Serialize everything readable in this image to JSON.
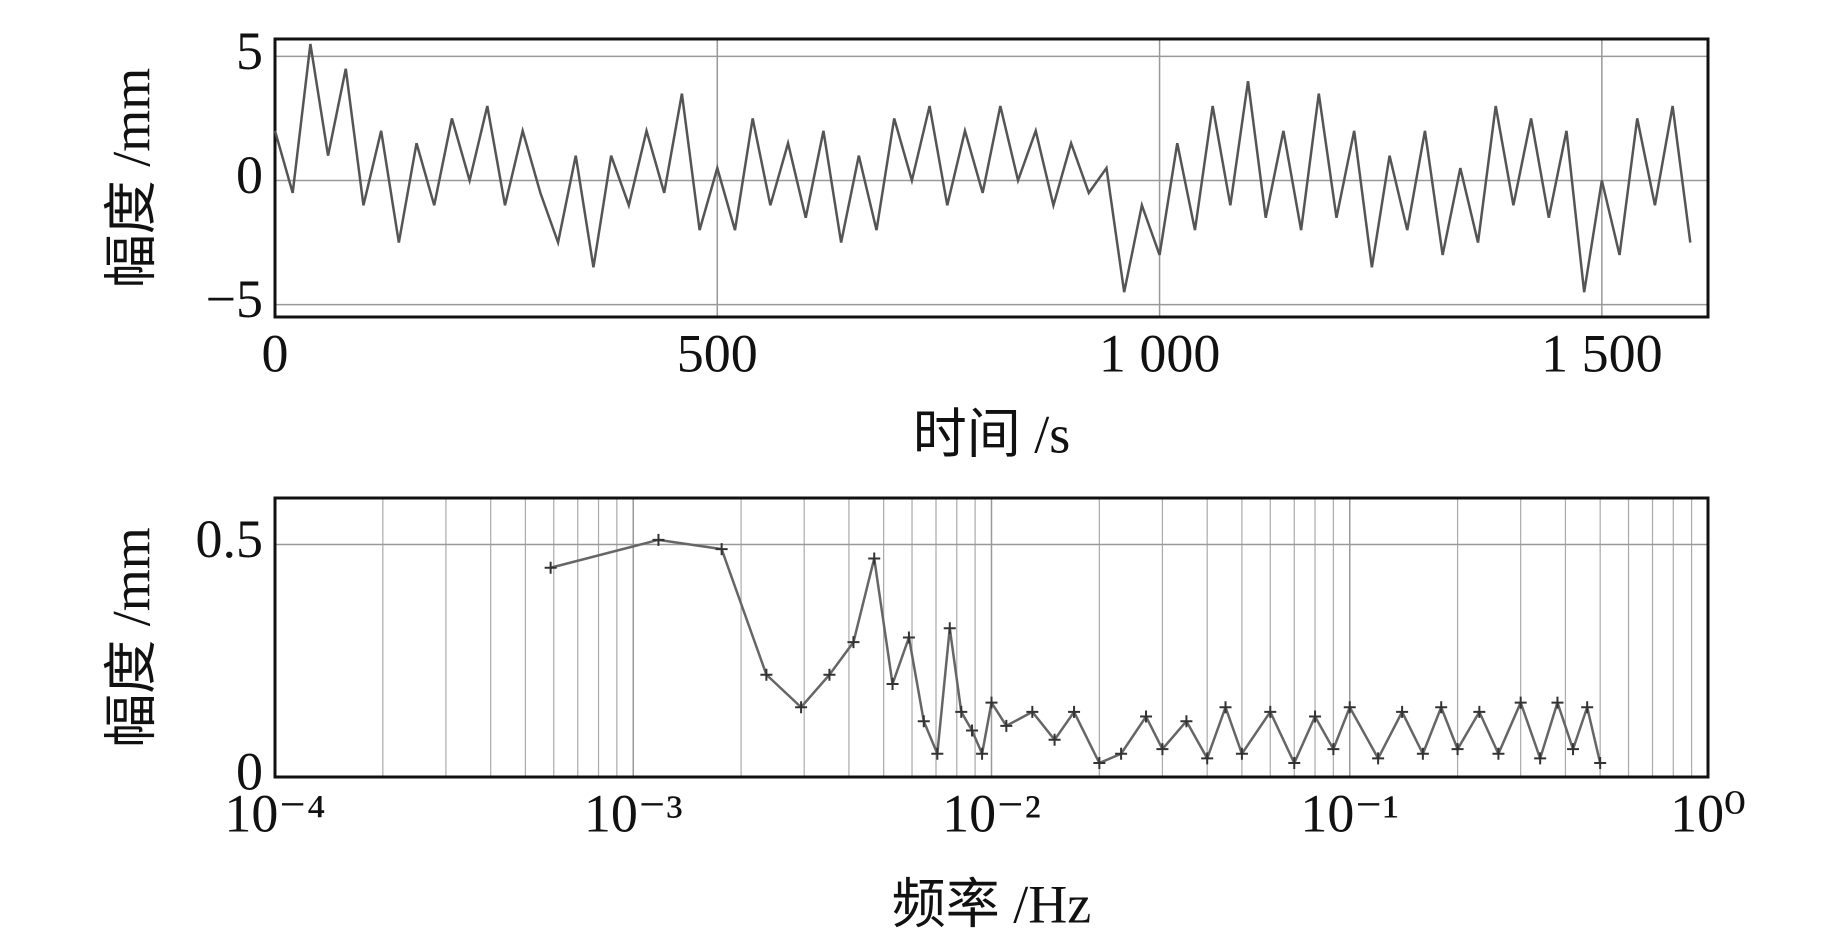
{
  "chart_data": [
    {
      "type": "line",
      "xlabel": "时间 /s",
      "ylabel": "幅度 /mm",
      "x": [
        0,
        20,
        40,
        60,
        80,
        100,
        120,
        140,
        160,
        180,
        200,
        220,
        240,
        260,
        280,
        300,
        320,
        340,
        360,
        380,
        400,
        420,
        440,
        460,
        480,
        500,
        520,
        540,
        560,
        580,
        600,
        620,
        640,
        660,
        680,
        700,
        720,
        740,
        760,
        780,
        800,
        820,
        840,
        860,
        880,
        900,
        920,
        940,
        960,
        980,
        1000,
        1020,
        1040,
        1060,
        1080,
        1100,
        1120,
        1140,
        1160,
        1180,
        1200,
        1220,
        1240,
        1260,
        1280,
        1300,
        1320,
        1340,
        1360,
        1380,
        1400,
        1420,
        1440,
        1460,
        1480,
        1500,
        1520,
        1540,
        1560,
        1580,
        1600
      ],
      "series": [
        {
          "color": "#555555",
          "values": [
            2,
            -0.5,
            5.5,
            1,
            4.5,
            -1,
            2,
            -2.5,
            1.5,
            -1,
            2.5,
            0,
            3,
            -1,
            2,
            -0.5,
            -2.5,
            1,
            -3.5,
            1,
            -1,
            2,
            -0.5,
            3.5,
            -2,
            0.5,
            -2,
            2.5,
            -1,
            1.5,
            -1.5,
            2,
            -2.5,
            1,
            -2,
            2.5,
            0,
            3,
            -1,
            2,
            -0.5,
            3,
            0,
            2,
            -1,
            1.5,
            -0.5,
            0.5,
            -4.5,
            -1,
            -3,
            1.5,
            -2,
            3,
            -1,
            4,
            -1.5,
            2,
            -2,
            3.5,
            -1.5,
            2,
            -3.5,
            1,
            -2,
            2,
            -3,
            0.5,
            -2.5,
            3,
            -1,
            2.5,
            -1.5,
            2,
            -4.5,
            0,
            -3,
            2.5,
            -1,
            3,
            -2.5
          ]
        }
      ],
      "xlim": [
        0,
        1620
      ],
      "ylim": [
        -5.5,
        5.7
      ],
      "xticks": [
        0,
        500,
        {
          "value": 1000,
          "label": "1 000"
        },
        {
          "value": 1500,
          "label": "1 500"
        }
      ],
      "yticks": [
        {
          "value": -5,
          "label": "−5"
        },
        0,
        5
      ],
      "grid": true
    },
    {
      "type": "line",
      "xlabel": "频率 /Hz",
      "ylabel": "幅度 /mm",
      "xscale": "log",
      "marker": "+",
      "x": [
        0.000588,
        0.001176,
        0.001765,
        0.002353,
        0.002941,
        0.003529,
        0.004118,
        0.004706,
        0.005294,
        0.005882,
        0.006471,
        0.007059,
        0.007647,
        0.008235,
        0.008824,
        0.009412,
        0.01,
        0.011,
        0.013,
        0.015,
        0.017,
        0.02,
        0.023,
        0.027,
        0.03,
        0.035,
        0.04,
        0.045,
        0.05,
        0.06,
        0.07,
        0.08,
        0.09,
        0.1,
        0.12,
        0.14,
        0.16,
        0.18,
        0.2,
        0.23,
        0.26,
        0.3,
        0.34,
        0.38,
        0.42,
        0.46,
        0.5
      ],
      "series": [
        {
          "color": "#666666",
          "values": [
            0.45,
            0.51,
            0.49,
            0.22,
            0.15,
            0.22,
            0.29,
            0.47,
            0.2,
            0.3,
            0.12,
            0.05,
            0.32,
            0.14,
            0.1,
            0.05,
            0.16,
            0.11,
            0.14,
            0.08,
            0.14,
            0.03,
            0.05,
            0.13,
            0.06,
            0.12,
            0.04,
            0.15,
            0.05,
            0.14,
            0.03,
            0.13,
            0.06,
            0.15,
            0.04,
            0.14,
            0.05,
            0.15,
            0.06,
            0.14,
            0.05,
            0.16,
            0.04,
            0.16,
            0.06,
            0.15,
            0.03
          ]
        }
      ],
      "xlim": [
        0.0001,
        1
      ],
      "ylim": [
        0,
        0.6
      ],
      "xticks": [
        {
          "value": 0.0001,
          "label": "10⁻⁴"
        },
        {
          "value": 0.001,
          "label": "10⁻³"
        },
        {
          "value": 0.01,
          "label": "10⁻²"
        },
        {
          "value": 0.1,
          "label": "10⁻¹"
        },
        {
          "value": 1,
          "label": "10⁰"
        }
      ],
      "yticks": [
        0,
        0.5
      ],
      "grid": true,
      "minor_grid": true
    }
  ]
}
